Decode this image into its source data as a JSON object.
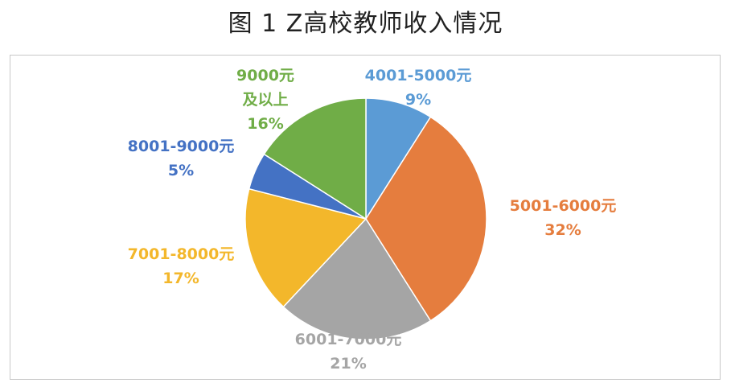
{
  "title": "图 1 Z高校教师收入情况",
  "chart_data": {
    "type": "pie",
    "title": "图 1 Z高校教师收入情况",
    "slices": [
      {
        "label": "4001-5000元",
        "value": 9,
        "pct_label": "9%",
        "color": "#5b9bd5"
      },
      {
        "label": "5001-6000元",
        "value": 32,
        "pct_label": "32%",
        "color": "#e57d3e"
      },
      {
        "label": "6001-7000元",
        "value": 21,
        "pct_label": "21%",
        "color": "#a5a5a5"
      },
      {
        "label": "7001-8000元",
        "value": 17,
        "pct_label": "17%",
        "color": "#f3b72b"
      },
      {
        "label": "8001-9000元",
        "value": 5,
        "pct_label": "5%",
        "color": "#4472c4"
      },
      {
        "label": "9000元及以上",
        "value": 16,
        "pct_label": "16%",
        "color": "#70ad47"
      }
    ],
    "start_angle": "12 o'clock",
    "direction": "clockwise",
    "legend": "none",
    "data_labels": "outside"
  }
}
